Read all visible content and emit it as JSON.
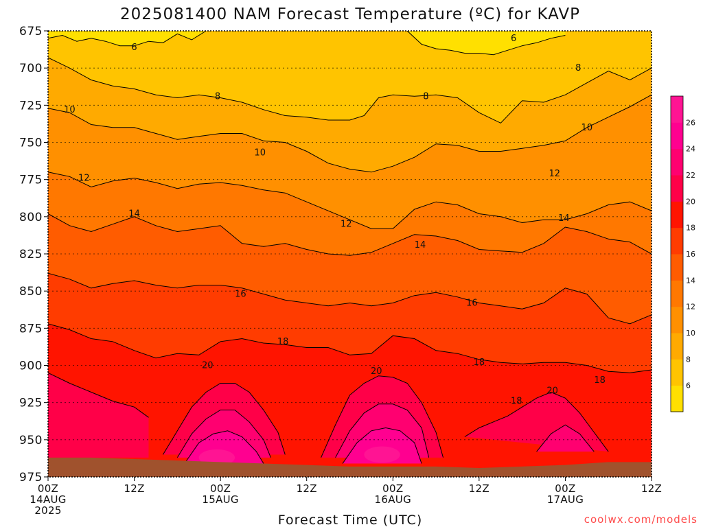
{
  "chart_data": {
    "type": "contour",
    "title": "2025081400 NAM Forecast Temperature (ºC) for KAVP",
    "xlabel": "Forecast Time (UTC)",
    "ylabel": "",
    "credit": "coolwx.com/models",
    "y_axis": {
      "unit": "hPa",
      "ticks": [
        "675",
        "700",
        "725",
        "750",
        "775",
        "800",
        "825",
        "850",
        "875",
        "900",
        "925",
        "950",
        "975"
      ],
      "range": [
        675,
        975
      ]
    },
    "x_axis": {
      "unit": "forecast hour",
      "ticks": [
        {
          "hour": 0,
          "lines": [
            "00Z",
            "14AUG",
            "2025"
          ]
        },
        {
          "hour": 12,
          "lines": [
            "12Z"
          ]
        },
        {
          "hour": 24,
          "lines": [
            "00Z",
            "15AUG"
          ]
        },
        {
          "hour": 36,
          "lines": [
            "12Z"
          ]
        },
        {
          "hour": 48,
          "lines": [
            "00Z",
            "16AUG"
          ]
        },
        {
          "hour": 60,
          "lines": [
            "12Z"
          ]
        },
        {
          "hour": 72,
          "lines": [
            "00Z",
            "17AUG"
          ]
        },
        {
          "hour": 84,
          "lines": [
            "12Z"
          ]
        }
      ],
      "range": [
        0,
        84
      ]
    },
    "colorbar": {
      "ticks": [
        "6",
        "8",
        "10",
        "12",
        "14",
        "16",
        "18",
        "20",
        "22",
        "24",
        "26"
      ],
      "colors": [
        "#ffe000",
        "#ffc400",
        "#ffaa00",
        "#ff9000",
        "#ff7800",
        "#ff5c00",
        "#ff3c00",
        "#ff1400",
        "#ff0048",
        "#ff0070",
        "#ff0090",
        "#ff1493"
      ]
    },
    "contour_levels": [
      6,
      8,
      10,
      12,
      14,
      16,
      18,
      20,
      22,
      24
    ],
    "band_colors": {
      "lt6": "#ffe000",
      "6_8": "#ffc400",
      "8_10": "#ffaa00",
      "10_12": "#ff9000",
      "12_14": "#ff7800",
      "14_16": "#ff5c00",
      "16_18": "#ff3c00",
      "18_20": "#ff1400",
      "20_22": "#ff0048",
      "22_24": "#ff0070",
      "24_26": "#ff0090",
      "ge26": "#ff1493"
    },
    "ground_color": "#a0522d",
    "contours": [
      {
        "level": 6,
        "label": "6",
        "segments": [
          {
            "x": [
              0,
              2,
              4,
              6,
              8,
              10,
              12,
              14,
              16,
              18,
              20,
              22
            ],
            "y": [
              680,
              678,
              682,
              680,
              682,
              685,
              685,
              682,
              683,
              677,
              681,
              675
            ]
          },
          {
            "x": [
              50,
              52,
              54,
              56,
              58,
              60,
              62,
              64,
              66,
              68,
              70,
              72
            ],
            "y": [
              675,
              684,
              687,
              688,
              690,
              690,
              691,
              688,
              685,
              683,
              680,
              678
            ]
          }
        ]
      },
      {
        "level": 8,
        "label": "8",
        "segments": [
          {
            "x": [
              0,
              3,
              6,
              9,
              12,
              15,
              18,
              21,
              24,
              27,
              30,
              33,
              36,
              39,
              42,
              44,
              46,
              48,
              51,
              54,
              57,
              60,
              63,
              66,
              69,
              72,
              75,
              78,
              81,
              84
            ],
            "y": [
              693,
              700,
              708,
              712,
              714,
              718,
              720,
              718,
              720,
              723,
              728,
              732,
              733,
              735,
              735,
              732,
              720,
              718,
              719,
              718,
              720,
              730,
              737,
              722,
              723,
              718,
              710,
              702,
              708,
              700
            ]
          }
        ]
      },
      {
        "level": 10,
        "label": "10",
        "segments": [
          {
            "x": [
              0,
              3,
              6,
              9,
              12,
              15,
              18,
              21,
              24,
              27,
              30,
              33,
              36,
              39,
              42,
              45,
              48,
              51,
              54,
              57,
              60,
              63,
              66,
              69,
              72,
              75,
              78,
              81,
              84
            ],
            "y": [
              727,
              730,
              738,
              740,
              740,
              744,
              748,
              746,
              744,
              744,
              749,
              750,
              756,
              764,
              768,
              770,
              766,
              760,
              751,
              752,
              756,
              756,
              754,
              752,
              749,
              740,
              733,
              726,
              718
            ]
          }
        ]
      },
      {
        "level": 12,
        "label": "12",
        "segments": [
          {
            "x": [
              0,
              3,
              6,
              9,
              12,
              15,
              18,
              21,
              24,
              27,
              30,
              33,
              36,
              39,
              42,
              45,
              48,
              51,
              54,
              57,
              60,
              63,
              66,
              69,
              72,
              75,
              78,
              81,
              84
            ],
            "y": [
              770,
              773,
              780,
              776,
              774,
              777,
              781,
              778,
              777,
              779,
              782,
              784,
              790,
              796,
              802,
              808,
              808,
              795,
              790,
              792,
              798,
              800,
              804,
              802,
              802,
              798,
              792,
              790,
              796
            ]
          }
        ]
      },
      {
        "level": 14,
        "label": "14",
        "segments": [
          {
            "x": [
              0,
              3,
              6,
              9,
              12,
              15,
              18,
              21,
              24,
              27,
              30,
              33,
              36,
              39,
              42,
              45,
              48,
              51,
              54,
              57,
              60,
              63,
              66,
              69,
              72,
              75,
              78,
              81,
              84
            ],
            "y": [
              798,
              806,
              810,
              805,
              800,
              806,
              810,
              808,
              806,
              818,
              820,
              818,
              822,
              825,
              826,
              824,
              818,
              812,
              813,
              816,
              822,
              823,
              824,
              818,
              807,
              810,
              815,
              817,
              825
            ]
          }
        ]
      },
      {
        "level": 16,
        "label": "16",
        "segments": [
          {
            "x": [
              0,
              3,
              6,
              9,
              12,
              15,
              18,
              21,
              24,
              27,
              30,
              33,
              36,
              39,
              42,
              45,
              48,
              51,
              54,
              57,
              60,
              63,
              66,
              69,
              72,
              75,
              78,
              81,
              84
            ],
            "y": [
              838,
              842,
              848,
              845,
              843,
              846,
              848,
              846,
              846,
              848,
              852,
              856,
              858,
              860,
              858,
              860,
              858,
              853,
              851,
              854,
              858,
              860,
              862,
              858,
              848,
              852,
              868,
              872,
              866
            ]
          }
        ]
      },
      {
        "level": 18,
        "label": "18",
        "segments": [
          {
            "x": [
              0,
              3,
              6,
              9,
              12,
              15,
              18,
              21,
              24,
              27,
              30,
              33,
              36,
              39,
              42,
              45,
              48,
              51,
              54,
              57,
              60,
              63,
              66,
              69,
              72,
              75,
              78,
              81,
              84
            ],
            "y": [
              872,
              876,
              882,
              884,
              890,
              895,
              892,
              893,
              884,
              882,
              885,
              886,
              888,
              888,
              893,
              892,
              880,
              882,
              890,
              892,
              896,
              898,
              899,
              898,
              898,
              900,
              904,
              905,
              903
            ]
          }
        ]
      },
      {
        "level": 20,
        "label": "20",
        "segments": [
          {
            "x": [
              0,
              3,
              6,
              9,
              12,
              14
            ],
            "y": [
              905,
              912,
              918,
              924,
              928,
              935
            ]
          },
          {
            "x": [
              16,
              18,
              20,
              22,
              24,
              26,
              28,
              30,
              32,
              33
            ],
            "y": [
              960,
              944,
              928,
              918,
              912,
              912,
              918,
              930,
              945,
              960
            ]
          },
          {
            "x": [
              38,
              40,
              42,
              44,
              46,
              48,
              50,
              52,
              54,
              55
            ],
            "y": [
              962,
              940,
              920,
              912,
              907,
              908,
              912,
              925,
              945,
              962
            ]
          },
          {
            "x": [
              58,
              60,
              62,
              64,
              66,
              68,
              70,
              72,
              74,
              76,
              78
            ],
            "y": [
              948,
              942,
              938,
              934,
              928,
              922,
              918,
              922,
              932,
              945,
              958
            ]
          }
        ]
      },
      {
        "level": 22,
        "label": "",
        "segments": [
          {
            "x": [
              18,
              20,
              22,
              24,
              26,
              28,
              30,
              31
            ],
            "y": [
              962,
              946,
              936,
              930,
              930,
              938,
              950,
              962
            ]
          },
          {
            "x": [
              40,
              42,
              44,
              46,
              48,
              50,
              52,
              53
            ],
            "y": [
              962,
              944,
              932,
              926,
              926,
              930,
              942,
              962
            ]
          },
          {
            "x": [
              68,
              70,
              72,
              74,
              76
            ],
            "y": [
              958,
              946,
              940,
              946,
              958
            ]
          }
        ]
      },
      {
        "level": 24,
        "label": "",
        "segments": [
          {
            "x": [
              19,
              21,
              23,
              25,
              27,
              29,
              30
            ],
            "y": [
              966,
              952,
              946,
              944,
              948,
              958,
              966
            ]
          },
          {
            "x": [
              41,
              43,
              45,
              47,
              49,
              51,
              52
            ],
            "y": [
              966,
              952,
              944,
              942,
              944,
              952,
              966
            ]
          }
        ]
      }
    ],
    "contour_labels": [
      {
        "text": "6",
        "hour": 12.0,
        "hPa": 686
      },
      {
        "text": "6",
        "hour": 64.8,
        "hPa": 680
      },
      {
        "text": "8",
        "hour": 23.6,
        "hPa": 719
      },
      {
        "text": "8",
        "hour": 52.6,
        "hPa": 719
      },
      {
        "text": "8",
        "hour": 73.8,
        "hPa": 700
      },
      {
        "text": "10",
        "hour": 3.0,
        "hPa": 728
      },
      {
        "text": "10",
        "hour": 29.5,
        "hPa": 757
      },
      {
        "text": "10",
        "hour": 75.0,
        "hPa": 740
      },
      {
        "text": "12",
        "hour": 5.0,
        "hPa": 774
      },
      {
        "text": "12",
        "hour": 41.5,
        "hPa": 805
      },
      {
        "text": "12",
        "hour": 70.5,
        "hPa": 771
      },
      {
        "text": "14",
        "hour": 12.0,
        "hPa": 798
      },
      {
        "text": "14",
        "hour": 51.8,
        "hPa": 819
      },
      {
        "text": "14",
        "hour": 71.8,
        "hPa": 801
      },
      {
        "text": "16",
        "hour": 26.8,
        "hPa": 852
      },
      {
        "text": "16",
        "hour": 59.0,
        "hPa": 858
      },
      {
        "text": "18",
        "hour": 32.7,
        "hPa": 884
      },
      {
        "text": "18",
        "hour": 60.0,
        "hPa": 898
      },
      {
        "text": "18",
        "hour": 65.2,
        "hPa": 924
      },
      {
        "text": "18",
        "hour": 76.8,
        "hPa": 910
      },
      {
        "text": "20",
        "hour": 22.2,
        "hPa": 900
      },
      {
        "text": "20",
        "hour": 45.7,
        "hPa": 904
      },
      {
        "text": "20",
        "hour": 70.2,
        "hPa": 917
      }
    ]
  }
}
